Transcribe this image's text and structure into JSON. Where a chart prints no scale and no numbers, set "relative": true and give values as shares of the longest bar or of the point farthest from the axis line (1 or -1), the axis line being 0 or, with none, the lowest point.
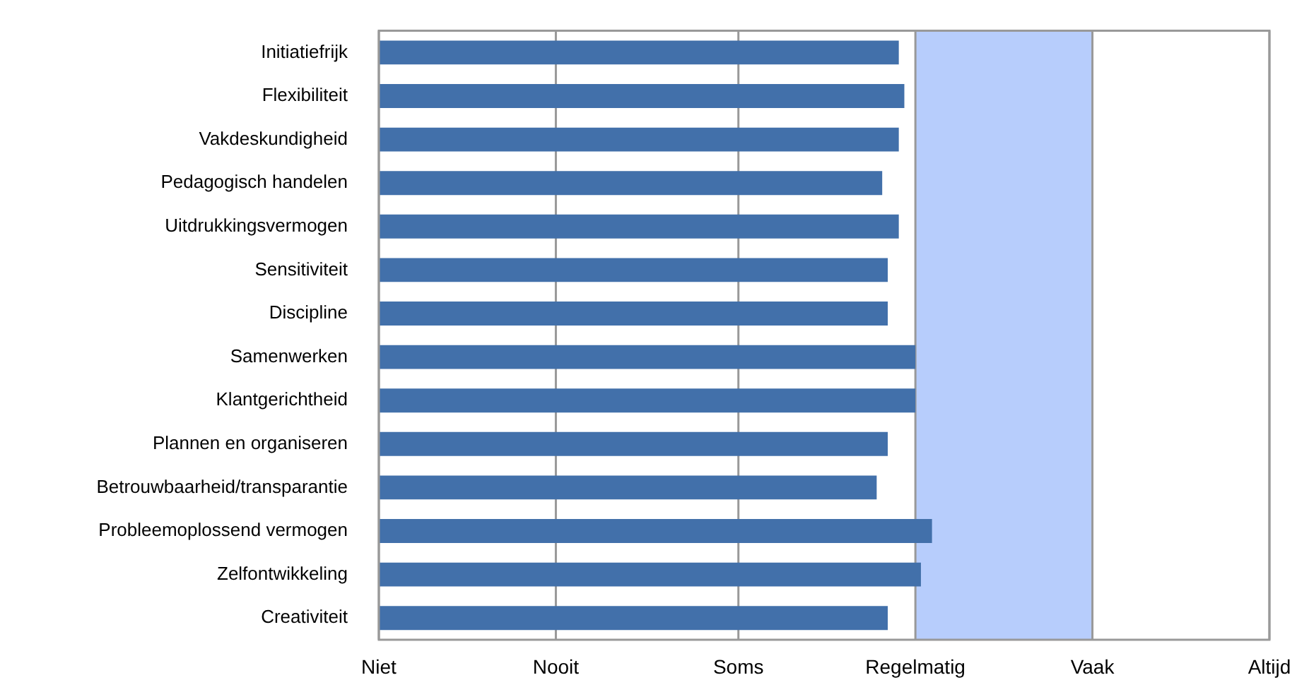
{
  "chart_data": {
    "type": "bar",
    "orientation": "horizontal",
    "relative": true,
    "categories": [
      "Initiatiefrijk",
      "Flexibiliteit",
      "Vakdeskundigheid",
      "Pedagogisch handelen",
      "Uitdrukkingsvermogen",
      "Sensitiviteit",
      "Discipline",
      "Samenwerken",
      "Klantgerichtheid",
      "Plannen en organiseren",
      "Betrouwbaarheid/transparantie",
      "Probleemoplossend vermogen",
      "Zelfontwikkeling",
      "Creativiteit"
    ],
    "values": [
      0.94,
      0.95,
      0.94,
      0.91,
      0.94,
      0.92,
      0.92,
      0.97,
      0.97,
      0.92,
      0.9,
      1,
      0.98,
      0.92
    ],
    "color": "#4270aa",
    "ref_lines": [
      {
        "axis": "x",
        "value": 0,
        "label": "Niet",
        "color": "#999999"
      },
      {
        "axis": "x",
        "value": 0.32,
        "label": "Nooit",
        "color": "#999999"
      },
      {
        "axis": "x",
        "value": 0.65,
        "label": "Soms",
        "color": "#999999"
      },
      {
        "axis": "x",
        "value": 0.97,
        "label": "Regelmatig",
        "color": "#999999"
      },
      {
        "axis": "x",
        "value": 1.29,
        "label": "Vaak",
        "color": "#999999"
      },
      {
        "axis": "x",
        "value": 1.61,
        "label": "Altijd",
        "color": "#999999"
      }
    ],
    "bands": [
      {
        "axis": "x",
        "from": 0.97,
        "to": 1.29,
        "color": "#b7cdfc"
      }
    ],
    "legend": false
  }
}
